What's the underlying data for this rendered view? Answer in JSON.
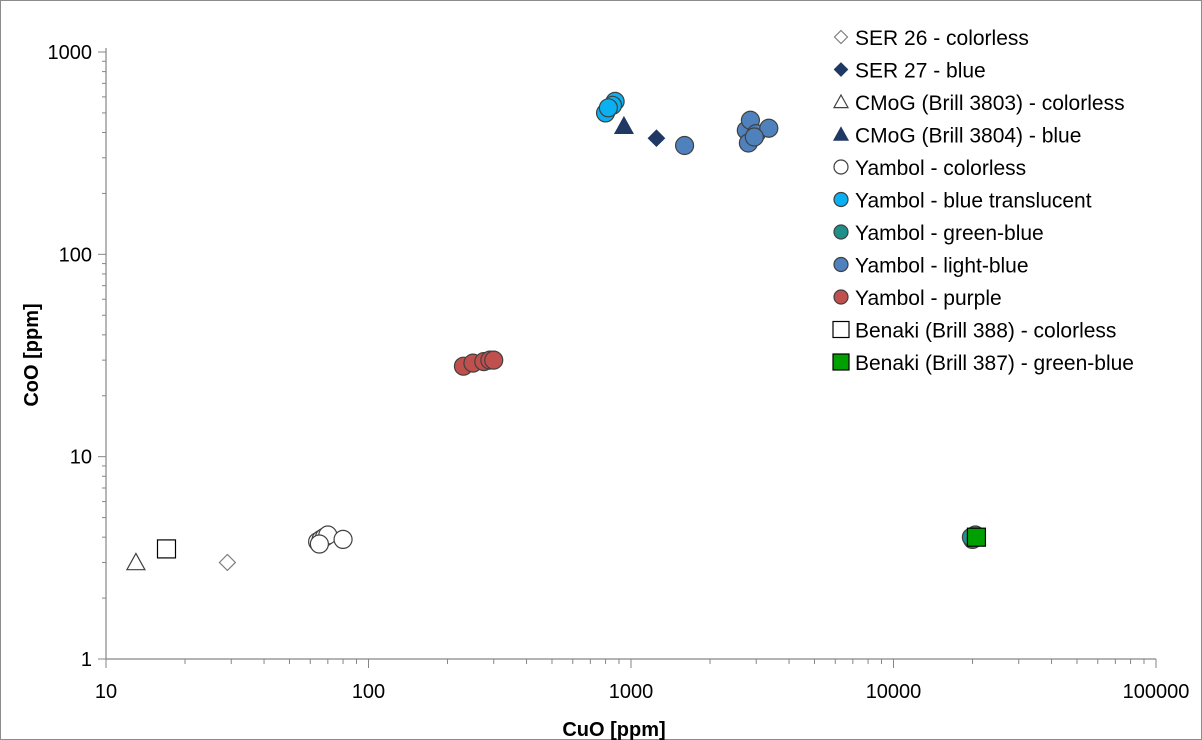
{
  "chart_data": {
    "type": "scatter",
    "title": "",
    "xlabel": "CuO [ppm]",
    "ylabel": "CoO [ppm]",
    "x_scale": "log",
    "y_scale": "log",
    "xlim": [
      10,
      100000
    ],
    "ylim": [
      1,
      1000
    ],
    "x_ticks": [
      "10",
      "100",
      "1000",
      "10000",
      "100000"
    ],
    "y_ticks": [
      "1",
      "10",
      "100",
      "1000"
    ],
    "grid": false,
    "legend_position": "top-right",
    "series": [
      {
        "name": "SER 26 - colorless",
        "marker": "diamond",
        "fill": "#ffffff",
        "stroke": "#7f7f7f",
        "points": [
          {
            "x": 29,
            "y": 3.0
          }
        ]
      },
      {
        "name": "SER 27 - blue",
        "marker": "diamond",
        "fill": "#1f3864",
        "stroke": "#1f3864",
        "points": [
          {
            "x": 1250,
            "y": 375
          }
        ]
      },
      {
        "name": "CMoG (Brill 3803) - colorless",
        "marker": "triangle",
        "fill": "#ffffff",
        "stroke": "#404040",
        "points": [
          {
            "x": 13,
            "y": 3.0
          }
        ]
      },
      {
        "name": "CMoG (Brill 3804) - blue",
        "marker": "triangle",
        "fill": "#1f3864",
        "stroke": "#1f3864",
        "points": [
          {
            "x": 940,
            "y": 430
          }
        ]
      },
      {
        "name": "Yambol - colorless",
        "marker": "circle",
        "fill": "#ffffff",
        "stroke": "#404040",
        "points": [
          {
            "x": 64,
            "y": 3.8
          },
          {
            "x": 66,
            "y": 3.9
          },
          {
            "x": 68,
            "y": 4.0
          },
          {
            "x": 70,
            "y": 4.1
          },
          {
            "x": 65,
            "y": 3.7
          },
          {
            "x": 80,
            "y": 3.9
          }
        ]
      },
      {
        "name": "Yambol - blue  translucent",
        "marker": "circle",
        "fill": "#0bb0f0",
        "stroke": "#404040",
        "points": [
          {
            "x": 800,
            "y": 500
          },
          {
            "x": 870,
            "y": 570
          },
          {
            "x": 850,
            "y": 545
          },
          {
            "x": 820,
            "y": 530
          }
        ]
      },
      {
        "name": "Yambol - green-blue",
        "marker": "circle",
        "fill": "#1f8f8a",
        "stroke": "#404040",
        "points": [
          {
            "x": 20000,
            "y": 3.9
          },
          {
            "x": 20500,
            "y": 4.1
          },
          {
            "x": 19800,
            "y": 4.0
          }
        ]
      },
      {
        "name": "Yambol - light-blue",
        "marker": "circle",
        "fill": "#4f81bd",
        "stroke": "#404040",
        "points": [
          {
            "x": 1600,
            "y": 345
          },
          {
            "x": 2750,
            "y": 410
          },
          {
            "x": 2850,
            "y": 460
          },
          {
            "x": 2800,
            "y": 355
          },
          {
            "x": 3000,
            "y": 395
          },
          {
            "x": 3350,
            "y": 420
          },
          {
            "x": 2950,
            "y": 380
          }
        ]
      },
      {
        "name": "Yambol - purple",
        "marker": "circle",
        "fill": "#c0504d",
        "stroke": "#404040",
        "points": [
          {
            "x": 230,
            "y": 28
          },
          {
            "x": 250,
            "y": 29
          },
          {
            "x": 275,
            "y": 29.5
          },
          {
            "x": 290,
            "y": 30
          },
          {
            "x": 300,
            "y": 30
          }
        ]
      },
      {
        "name": "Benaki (Brill 388) - colorless",
        "marker": "square",
        "fill": "#ffffff",
        "stroke": "#000000",
        "points": [
          {
            "x": 17,
            "y": 3.5
          }
        ]
      },
      {
        "name": "Benaki (Brill 387) - green-blue",
        "marker": "square",
        "fill": "#00a000",
        "stroke": "#000000",
        "points": [
          {
            "x": 20700,
            "y": 4.0
          }
        ]
      }
    ]
  }
}
